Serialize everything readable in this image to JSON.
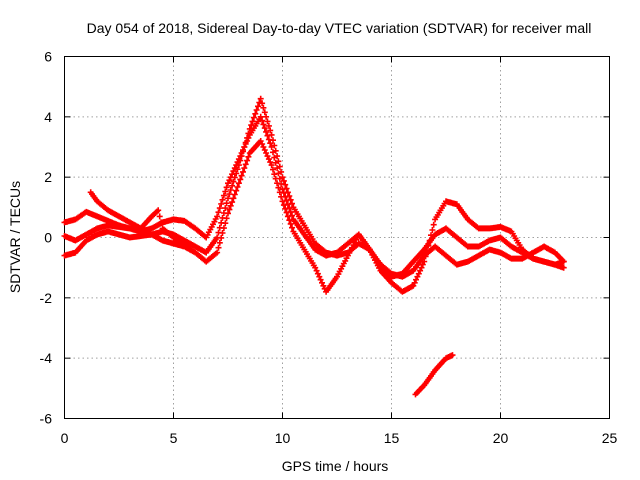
{
  "chart_data": {
    "type": "scatter",
    "title": "Day 054 of 2018, Sidereal Day-to-day VTEC variation (SDTVAR) for receiver mall",
    "xlabel": "GPS time / hours",
    "ylabel": "SDTVAR / TECUs",
    "xlim": [
      0,
      25
    ],
    "ylim": [
      -6,
      6
    ],
    "xticks": [
      0,
      5,
      10,
      15,
      20,
      25
    ],
    "xtick_labels": [
      "0",
      "5",
      "10",
      "15",
      "20",
      "25"
    ],
    "yticks": [
      -6,
      -4,
      -2,
      0,
      2,
      4,
      6
    ],
    "ytick_labels": [
      "-6",
      "-4",
      "-2",
      "0",
      "2",
      "4",
      "6"
    ],
    "grid": true,
    "marker": "plus",
    "series_color": "#ff0000",
    "series": [
      {
        "name": "track-1",
        "points": [
          [
            0,
            0.5
          ],
          [
            0.5,
            0.6
          ],
          [
            1,
            0.85
          ],
          [
            1.5,
            0.7
          ],
          [
            2,
            0.55
          ],
          [
            2.5,
            0.4
          ],
          [
            3,
            0.3
          ],
          [
            3.5,
            0.2
          ],
          [
            4,
            0.3
          ],
          [
            4.5,
            0.5
          ],
          [
            5,
            0.6
          ],
          [
            5.5,
            0.55
          ],
          [
            6,
            0.3
          ],
          [
            6.5,
            0.0
          ],
          [
            7,
            0.7
          ],
          [
            7.5,
            1.8
          ],
          [
            8,
            2.6
          ],
          [
            8.5,
            3.4
          ],
          [
            9,
            4.0
          ],
          [
            9.5,
            3.0
          ],
          [
            10,
            1.6
          ],
          [
            10.5,
            0.6
          ],
          [
            11,
            0.1
          ],
          [
            11.5,
            -0.4
          ],
          [
            12,
            -0.6
          ],
          [
            12.5,
            -0.5
          ],
          [
            13,
            -0.2
          ],
          [
            13.5,
            0.1
          ],
          [
            14,
            -0.4
          ],
          [
            14.5,
            -1.1
          ],
          [
            15,
            -1.5
          ],
          [
            15.5,
            -1.8
          ],
          [
            16,
            -1.6
          ],
          [
            16.5,
            -0.8
          ],
          [
            17,
            0.6
          ],
          [
            17.5,
            1.2
          ],
          [
            18,
            1.1
          ],
          [
            18.5,
            0.6
          ],
          [
            19,
            0.3
          ],
          [
            19.5,
            0.3
          ],
          [
            20,
            0.35
          ],
          [
            20.5,
            0.2
          ],
          [
            21,
            -0.4
          ],
          [
            21.5,
            -0.7
          ],
          [
            22,
            -0.8
          ],
          [
            22.5,
            -0.9
          ],
          [
            22.9,
            -0.8
          ]
        ]
      },
      {
        "name": "track-2",
        "points": [
          [
            0,
            0.05
          ],
          [
            0.5,
            -0.1
          ],
          [
            1,
            0.1
          ],
          [
            1.5,
            0.3
          ],
          [
            2,
            0.4
          ],
          [
            2.5,
            0.35
          ],
          [
            3,
            0.3
          ],
          [
            3.5,
            0.2
          ],
          [
            4,
            0.1
          ],
          [
            4.5,
            -0.1
          ],
          [
            5,
            -0.2
          ],
          [
            5.5,
            -0.3
          ],
          [
            6,
            -0.5
          ],
          [
            6.5,
            -0.8
          ],
          [
            7,
            -0.5
          ],
          [
            7.5,
            0.8
          ],
          [
            8,
            1.8
          ],
          [
            8.5,
            2.8
          ],
          [
            9,
            3.2
          ],
          [
            9.5,
            2.4
          ],
          [
            10,
            1.2
          ],
          [
            10.5,
            0.2
          ],
          [
            11,
            -0.4
          ],
          [
            11.5,
            -1.0
          ],
          [
            12,
            -1.8
          ],
          [
            12.5,
            -1.3
          ],
          [
            13,
            -0.6
          ],
          [
            13.5,
            0.1
          ],
          [
            14,
            -0.4
          ],
          [
            14.5,
            -1.1
          ],
          [
            15,
            -1.3
          ],
          [
            15.5,
            -1.2
          ],
          [
            16,
            -0.8
          ],
          [
            16.5,
            -0.4
          ],
          [
            17,
            0.1
          ],
          [
            17.5,
            0.3
          ],
          [
            18,
            0.0
          ],
          [
            18.5,
            -0.3
          ],
          [
            19,
            -0.3
          ],
          [
            19.5,
            -0.1
          ],
          [
            20,
            0.0
          ],
          [
            20.5,
            -0.3
          ],
          [
            21,
            -0.5
          ],
          [
            21.5,
            -0.7
          ],
          [
            22,
            -0.8
          ],
          [
            22.5,
            -0.9
          ],
          [
            22.9,
            -1.0
          ]
        ]
      },
      {
        "name": "track-3",
        "points": [
          [
            0,
            -0.6
          ],
          [
            0.5,
            -0.5
          ],
          [
            1,
            -0.1
          ],
          [
            1.5,
            0.1
          ],
          [
            2,
            0.2
          ],
          [
            2.5,
            0.1
          ],
          [
            3,
            0.0
          ],
          [
            3.5,
            0.05
          ],
          [
            4,
            0.1
          ],
          [
            4.5,
            0.2
          ],
          [
            5,
            0.1
          ],
          [
            5.5,
            -0.1
          ],
          [
            6,
            -0.3
          ],
          [
            6.5,
            -0.5
          ],
          [
            7,
            0.0
          ],
          [
            7.5,
            1.3
          ],
          [
            8,
            2.4
          ],
          [
            8.5,
            3.6
          ],
          [
            9,
            4.6
          ],
          [
            9.5,
            3.4
          ],
          [
            10,
            2.0
          ],
          [
            10.5,
            1.0
          ],
          [
            11,
            0.4
          ],
          [
            11.5,
            -0.2
          ],
          [
            12,
            -0.5
          ],
          [
            12.5,
            -0.6
          ],
          [
            13,
            -0.5
          ],
          [
            13.5,
            -0.2
          ],
          [
            14,
            -0.4
          ],
          [
            14.5,
            -0.9
          ],
          [
            15,
            -1.2
          ],
          [
            15.5,
            -1.3
          ],
          [
            16,
            -1.1
          ],
          [
            16.5,
            -0.6
          ],
          [
            17,
            -0.3
          ],
          [
            17.5,
            -0.6
          ],
          [
            18,
            -0.9
          ],
          [
            18.5,
            -0.8
          ],
          [
            19,
            -0.6
          ],
          [
            19.5,
            -0.4
          ],
          [
            20,
            -0.5
          ],
          [
            20.5,
            -0.7
          ],
          [
            21,
            -0.7
          ],
          [
            21.5,
            -0.5
          ],
          [
            22,
            -0.3
          ],
          [
            22.5,
            -0.5
          ],
          [
            22.9,
            -0.8
          ]
        ]
      },
      {
        "name": "track-4",
        "points": [
          [
            1.2,
            1.5
          ],
          [
            1.5,
            1.2
          ],
          [
            2,
            0.9
          ],
          [
            2.5,
            0.7
          ],
          [
            3,
            0.5
          ],
          [
            3.5,
            0.3
          ],
          [
            4,
            0.7
          ],
          [
            4.3,
            0.9
          ],
          [
            4.5,
            0.3
          ],
          [
            5,
            0.0
          ],
          [
            5.5,
            -0.2
          ],
          [
            5.8,
            -0.4
          ]
        ]
      },
      {
        "name": "track-5",
        "points": [
          [
            16.1,
            -5.2
          ],
          [
            16.5,
            -4.9
          ],
          [
            17,
            -4.4
          ],
          [
            17.5,
            -4.0
          ],
          [
            17.8,
            -3.9
          ]
        ]
      }
    ]
  }
}
